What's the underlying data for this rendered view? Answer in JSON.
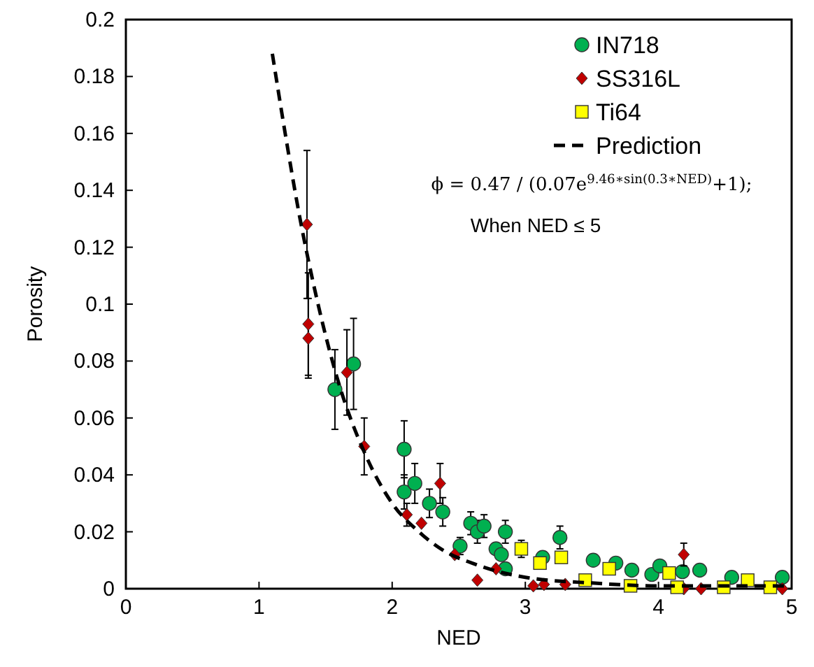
{
  "chart_data": {
    "type": "scatter",
    "xlabel": "NED",
    "ylabel": "Porosity",
    "xlim": [
      0,
      5
    ],
    "ylim": [
      0,
      0.2
    ],
    "xticks": [
      0,
      1,
      2,
      3,
      4,
      5
    ],
    "yticks": [
      0,
      0.02,
      0.04,
      0.06,
      0.08,
      0.1,
      0.12,
      0.14,
      0.16,
      0.18,
      0.2
    ],
    "grid": false,
    "legend": "top right",
    "series": [
      {
        "name": "IN718",
        "color": "#00b050",
        "marker": "circle",
        "x": [
          1.57,
          1.71,
          2.09,
          2.09,
          2.17,
          2.28,
          2.38,
          2.51,
          2.59,
          2.64,
          2.69,
          2.78,
          2.82,
          2.85,
          2.85,
          3.13,
          3.26,
          3.51,
          3.68,
          3.8,
          3.95,
          4.01,
          4.18,
          4.31,
          4.55,
          4.93
        ],
        "values": [
          0.07,
          0.079,
          0.049,
          0.034,
          0.037,
          0.03,
          0.027,
          0.015,
          0.023,
          0.02,
          0.022,
          0.014,
          0.012,
          0.02,
          0.007,
          0.011,
          0.018,
          0.01,
          0.009,
          0.0065,
          0.005,
          0.008,
          0.006,
          0.0065,
          0.004,
          0.004
        ],
        "errors": [
          0.014,
          0.016,
          0.01,
          0.006,
          0.007,
          0.005,
          0.005,
          0.003,
          0.004,
          0.004,
          0.004,
          null,
          null,
          0.004,
          null,
          null,
          0.004,
          null,
          null,
          null,
          null,
          null,
          null,
          null,
          null,
          null
        ]
      },
      {
        "name": "SS316L",
        "color": "#c00000",
        "marker": "diamond",
        "x": [
          1.36,
          1.37,
          1.37,
          1.66,
          1.79,
          2.11,
          2.22,
          2.36,
          2.47,
          2.64,
          2.78,
          3.06,
          3.14,
          3.3,
          4.19,
          4.19,
          4.32,
          4.93
        ],
        "values": [
          0.128,
          0.093,
          0.088,
          0.076,
          0.05,
          0.026,
          0.023,
          0.037,
          0.012,
          0.003,
          0.007,
          0.001,
          0.0015,
          0.0015,
          0.012,
          0,
          0,
          0
        ],
        "errors": [
          0.026,
          0.018,
          0.014,
          0.015,
          0.01,
          0.004,
          null,
          0.007,
          null,
          null,
          null,
          null,
          null,
          null,
          0.004,
          null,
          null,
          null
        ]
      },
      {
        "name": "Ti64",
        "color": "#ffff00",
        "marker": "square",
        "x": [
          2.97,
          3.11,
          3.27,
          3.45,
          3.63,
          3.79,
          4.08,
          4.14,
          4.49,
          4.67,
          4.84
        ],
        "values": [
          0.014,
          0.009,
          0.011,
          0.003,
          0.007,
          0.001,
          0.0055,
          0.0005,
          0.0005,
          0.003,
          0.0005
        ],
        "errors": [
          0.003,
          null,
          null,
          null,
          null,
          null,
          null,
          null,
          null,
          null,
          null
        ]
      },
      {
        "name": "Prediction",
        "type": "line",
        "color": "#000000",
        "line_style": "dashed",
        "marker": "none",
        "x": [
          1.1,
          1.2,
          1.3,
          1.4,
          1.5,
          1.6,
          1.8,
          2,
          2.2,
          2.4,
          2.6,
          2.8,
          3,
          3.5,
          4,
          4.5,
          5
        ],
        "values": [
          0.188,
          0.159,
          0.132,
          0.109,
          0.089,
          0.072,
          0.047,
          0.03,
          0.02,
          0.013,
          0.009,
          0.006,
          0.004,
          0.002,
          0.001,
          0.001,
          0.001
        ]
      }
    ],
    "annotations": [
      "ϕ = 0.47 / (0.07e$^{9.46∗sin(0.3∗NED)}$+1);",
      "When NED ≤ 5"
    ]
  }
}
